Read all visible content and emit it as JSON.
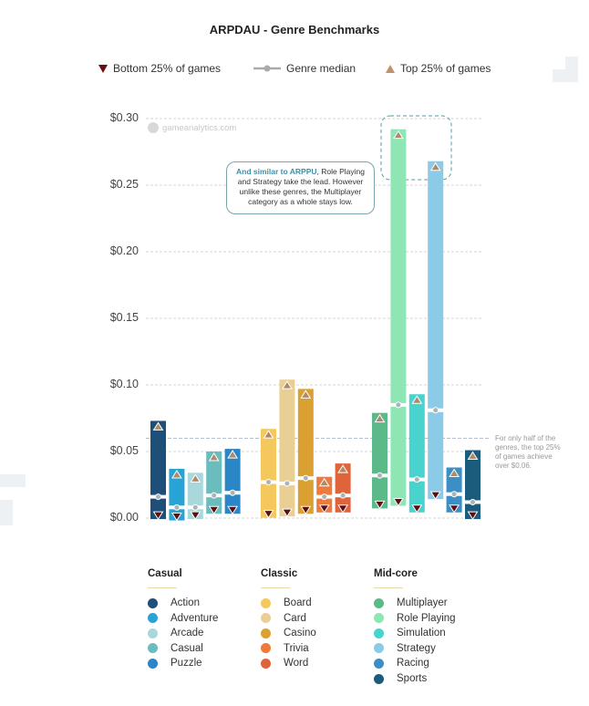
{
  "chart_data": {
    "type": "bar",
    "subtype": "range-bar",
    "title": "ARPDAU - Genre Benchmarks",
    "legend": {
      "bottom": "Bottom 25% of games",
      "median": "Genre median",
      "top": "Top 25% of games",
      "placement": "top"
    },
    "ylim": [
      0,
      0.3
    ],
    "yticks": [
      "$0.00",
      "$0.05",
      "$0.10",
      "$0.15",
      "$0.20",
      "$0.25",
      "$0.30"
    ],
    "ytick_values": [
      0,
      0.05,
      0.1,
      0.15,
      0.2,
      0.25,
      0.3
    ],
    "grid": true,
    "reference_line": 0.06,
    "watermark": "gameanalytics.com",
    "annotation": {
      "highlight": "And similar to ARPPU",
      "text": ", Role Playing and Strategy take the lead. However unlike these genres, the Multiplayer category as a whole stays low."
    },
    "side_note": "For only half of the genres, the top 25% of games achieve over $0.06.",
    "groups": [
      {
        "name": "Casual",
        "genres": [
          {
            "name": "Action",
            "color": "#1d4f79",
            "bottom": 0.002,
            "median": 0.016,
            "top": 0.073
          },
          {
            "name": "Adventure",
            "color": "#27a3d6",
            "bottom": 0.001,
            "median": 0.008,
            "top": 0.037
          },
          {
            "name": "Arcade",
            "color": "#a8d8dc",
            "bottom": 0.002,
            "median": 0.008,
            "top": 0.034
          },
          {
            "name": "Casual",
            "color": "#6bbcbc",
            "bottom": 0.006,
            "median": 0.017,
            "top": 0.05
          },
          {
            "name": "Puzzle",
            "color": "#2a86c5",
            "bottom": 0.006,
            "median": 0.019,
            "top": 0.052
          }
        ]
      },
      {
        "name": "Classic",
        "genres": [
          {
            "name": "Board",
            "color": "#f5c85e",
            "bottom": 0.003,
            "median": 0.027,
            "top": 0.067
          },
          {
            "name": "Card",
            "color": "#e9cf94",
            "bottom": 0.004,
            "median": 0.026,
            "top": 0.104
          },
          {
            "name": "Casino",
            "color": "#dba032",
            "bottom": 0.006,
            "median": 0.03,
            "top": 0.097
          },
          {
            "name": "Trivia",
            "color": "#ee7a3c",
            "bottom": 0.007,
            "median": 0.016,
            "top": 0.031
          },
          {
            "name": "Word",
            "color": "#e0643a",
            "bottom": 0.007,
            "median": 0.017,
            "top": 0.041
          }
        ]
      },
      {
        "name": "Mid-core",
        "genres": [
          {
            "name": "Multiplayer",
            "color": "#5cb98a",
            "bottom": 0.01,
            "median": 0.032,
            "top": 0.079
          },
          {
            "name": "Role Playing",
            "color": "#8ee6b5",
            "bottom": 0.012,
            "median": 0.085,
            "top": 0.292
          },
          {
            "name": "Simulation",
            "color": "#49d3cf",
            "bottom": 0.007,
            "median": 0.029,
            "top": 0.093
          },
          {
            "name": "Strategy",
            "color": "#8ccbe8",
            "bottom": 0.017,
            "median": 0.081,
            "top": 0.268
          },
          {
            "name": "Racing",
            "color": "#3b8fc4",
            "bottom": 0.007,
            "median": 0.018,
            "top": 0.038
          },
          {
            "name": "Sports",
            "color": "#1b5b7c",
            "bottom": 0.002,
            "median": 0.012,
            "top": 0.051
          }
        ]
      }
    ],
    "colors": {
      "top_marker": "#b08a68",
      "bottom_marker": "#5a1010",
      "median_marker": "#aab4b8"
    }
  }
}
